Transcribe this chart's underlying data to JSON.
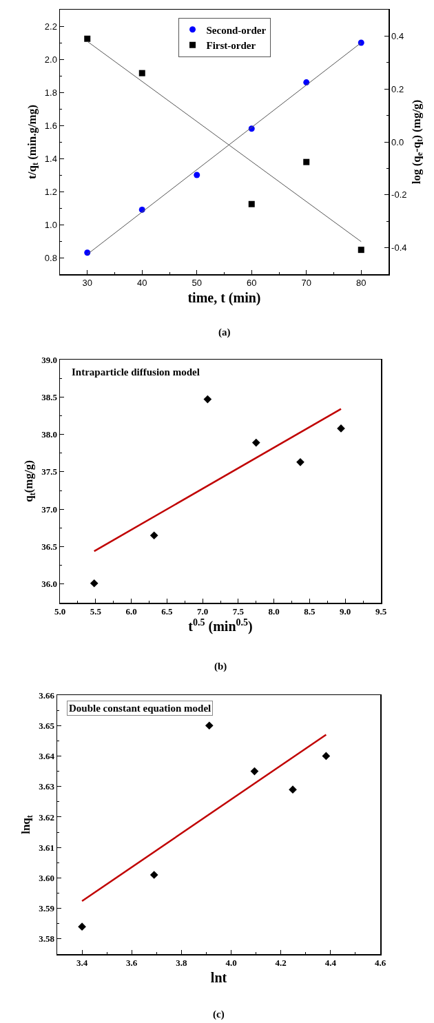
{
  "chart_data": [
    {
      "type": "scatter",
      "xlabel": "time, t (min)",
      "ylabel": "t/q$_{t}$ (min.g/mg)",
      "y2label": "log (q$_{e}$-q$_{t}$) (mg/g)",
      "x": [
        30,
        40,
        50,
        60,
        70,
        80
      ],
      "series": [
        {
          "name": "Second-order",
          "color": "#0000ff",
          "marker": "circle",
          "values": [
            0.83,
            1.09,
            1.3,
            1.58,
            1.86,
            2.1
          ]
        },
        {
          "name": "First-order",
          "color": "#000000",
          "marker": "square",
          "axis": "y2",
          "x": [
            30,
            40,
            60,
            70,
            80
          ],
          "values": [
            0.39,
            0.26,
            -0.235,
            -0.076,
            -0.408
          ]
        },
        {
          "type": "line",
          "color": "#555555",
          "x": [
            30,
            80
          ],
          "values": [
            0.82,
            2.1
          ]
        },
        {
          "type": "line",
          "color": "#555555",
          "axis": "y2",
          "x": [
            30,
            80
          ],
          "values": [
            0.38,
            -0.377
          ]
        }
      ],
      "xlim": [
        25,
        85
      ],
      "xticks": [
        30,
        40,
        50,
        60,
        70,
        80
      ],
      "ylim": [
        0.7,
        2.3
      ],
      "yticks": [
        0.8,
        {
          "value": 1,
          "label": "1.0"
        },
        1.2,
        1.4,
        1.6,
        1.8,
        {
          "value": 2,
          "label": "2.0"
        },
        2.2
      ],
      "y2lim": [
        -0.5,
        0.5
      ],
      "y2ticks": [
        -0.4,
        -0.2,
        {
          "value": 0,
          "label": "0.0"
        },
        0.2,
        0.4
      ],
      "legend": "top",
      "grid": false,
      "annotations": [
        "(a)"
      ]
    },
    {
      "type": "scatter",
      "xlabel": "t$^{0.5}$ (min$^{0.5}$)",
      "ylabel": "q$_{t}$(mg/g)",
      "x": [
        5.48,
        6.32,
        7.07,
        7.75,
        8.37,
        8.94
      ],
      "series": [
        {
          "color": "#000000",
          "marker": "diamond",
          "values": [
            36.01,
            36.65,
            38.47,
            37.89,
            37.63,
            38.08
          ]
        },
        {
          "type": "line",
          "color": "#c00000",
          "x": [
            5.48,
            8.94
          ],
          "values": [
            36.44,
            38.34
          ]
        }
      ],
      "xlim": [
        5,
        9.5
      ],
      "xticks": [
        {
          "value": 5,
          "label": "5.0"
        },
        5.5,
        {
          "value": 6,
          "label": "6.0"
        },
        6.5,
        {
          "value": 7,
          "label": "7.0"
        },
        7.5,
        {
          "value": 8,
          "label": "8.0"
        },
        8.5,
        {
          "value": 9,
          "label": "9.0"
        },
        9.5
      ],
      "ylim": [
        35.75,
        39
      ],
      "yticks": [
        {
          "value": 36,
          "label": "36.0"
        },
        36.5,
        {
          "value": 37,
          "label": "37.0"
        },
        37.5,
        {
          "value": 38,
          "label": "38.0"
        },
        38.5,
        {
          "value": 39,
          "label": "39.0"
        }
      ],
      "legend": false,
      "grid": false,
      "annotations": [
        "Intraparticle diffusion model",
        "(b)"
      ]
    },
    {
      "type": "scatter",
      "xlabel": "lnt",
      "ylabel": "lnq$_{t}$",
      "x": [
        3.4,
        3.69,
        3.912,
        4.094,
        4.248,
        4.382
      ],
      "series": [
        {
          "color": "#000000",
          "marker": "diamond",
          "values": [
            3.584,
            3.601,
            3.65,
            3.635,
            3.629,
            3.64
          ]
        },
        {
          "type": "line",
          "color": "#c00000",
          "x": [
            3.4,
            4.382
          ],
          "values": [
            3.5924,
            3.647
          ]
        }
      ],
      "xlim": [
        3.3,
        4.6
      ],
      "xticks": [
        3.4,
        3.6,
        3.8,
        {
          "value": 4,
          "label": "4.0"
        },
        4.2,
        4.4,
        4.6
      ],
      "ylim": [
        3.575,
        3.66
      ],
      "yticks": [
        3.58,
        3.59,
        {
          "value": 3.6,
          "label": "3.60"
        },
        3.61,
        3.62,
        3.63,
        3.64,
        3.65,
        3.66
      ],
      "legend": false,
      "grid": false,
      "annotations": [
        "Double constant equation model",
        "(c)"
      ]
    }
  ]
}
